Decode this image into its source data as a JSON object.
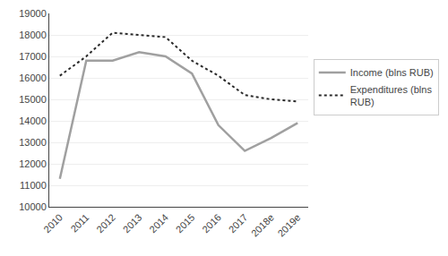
{
  "chart_data": {
    "type": "line",
    "categories": [
      "2010",
      "2011",
      "2012",
      "2013",
      "2014",
      "2015",
      "2016",
      "2017",
      "2018e",
      "2019e"
    ],
    "series": [
      {
        "name": "Income (blns RUB)",
        "color": "#a0a0a0",
        "line_style": "solid",
        "values": [
          11300,
          16800,
          16800,
          17200,
          17000,
          16200,
          13800,
          12600,
          13200,
          13900
        ]
      },
      {
        "name": "Expenditures (blns\nRUB)",
        "color": "#2a2a2a",
        "line_style": "dotted",
        "values": [
          16100,
          17000,
          18100,
          18000,
          17900,
          16800,
          16100,
          15200,
          15000,
          14900
        ]
      }
    ],
    "ylim": [
      10000,
      19000
    ],
    "yticks": [
      10000,
      11000,
      12000,
      13000,
      14000,
      15000,
      16000,
      17000,
      18000,
      19000
    ],
    "grid": true,
    "legend": "right"
  }
}
